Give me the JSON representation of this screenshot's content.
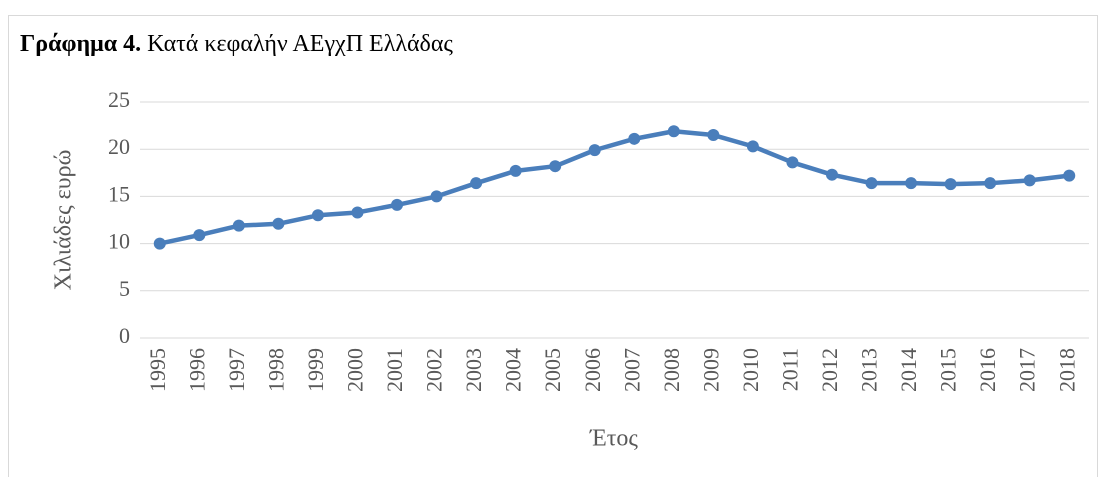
{
  "chart_data": {
    "type": "line",
    "title_label": "Γράφημα 4.",
    "title": "Κατά κεφαλήν ΑΕγχΠ Ελλάδας",
    "x_label": "Έτος",
    "y_label": "Χιλιάδες ευρώ",
    "categories": [
      "1995",
      "1996",
      "1997",
      "1998",
      "1999",
      "2000",
      "2001",
      "2002",
      "2003",
      "2004",
      "2005",
      "2006",
      "2007",
      "2008",
      "2009",
      "2010",
      "2011",
      "2012",
      "2013",
      "2014",
      "2015",
      "2016",
      "2017",
      "2018"
    ],
    "series": [
      {
        "color": "#4a7ebb",
        "values": [
          10.0,
          10.9,
          11.9,
          12.1,
          13.0,
          13.3,
          14.1,
          15.0,
          16.4,
          17.7,
          18.2,
          19.9,
          21.1,
          21.9,
          21.5,
          20.3,
          18.6,
          17.3,
          16.4,
          16.4,
          16.3,
          16.4,
          16.7,
          17.2
        ]
      }
    ],
    "ylim": [
      0,
      25
    ],
    "yticks": [
      0,
      5,
      10,
      15,
      20,
      25
    ],
    "grid": true
  }
}
